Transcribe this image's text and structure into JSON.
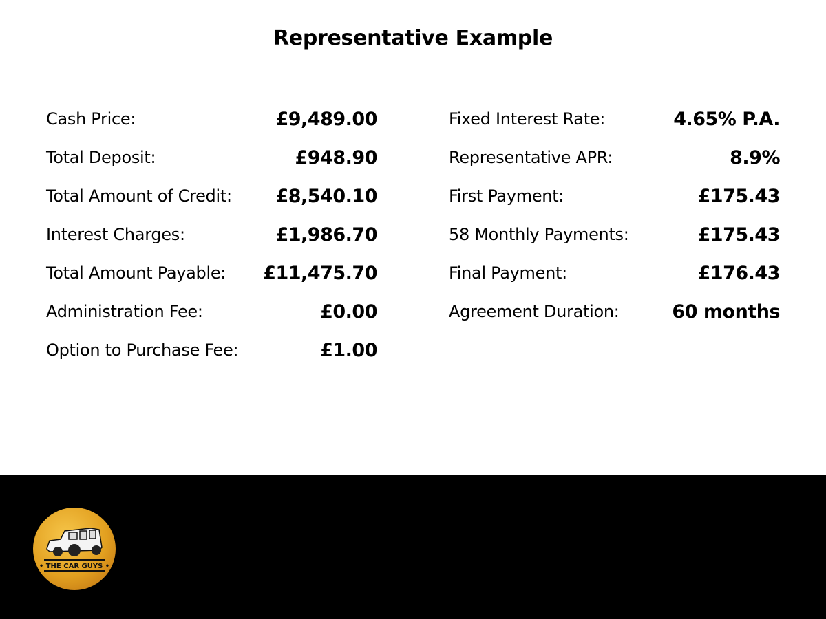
{
  "title": "Representative Example",
  "left": [
    {
      "label": "Cash Price:",
      "value": "£9,489.00"
    },
    {
      "label": "Total Deposit:",
      "value": "£948.90"
    },
    {
      "label": "Total Amount of Credit:",
      "value": "£8,540.10"
    },
    {
      "label": "Interest Charges:",
      "value": "£1,986.70"
    },
    {
      "label": "Total Amount Payable:",
      "value": "£11,475.70"
    },
    {
      "label": "Administration Fee:",
      "value": "£0.00"
    },
    {
      "label": "Option to Purchase Fee:",
      "value": "£1.00"
    }
  ],
  "right": [
    {
      "label": "Fixed Interest Rate:",
      "value": "4.65% P.A."
    },
    {
      "label": "Representative APR:",
      "value": "8.9%"
    },
    {
      "label": "First Payment:",
      "value": "£175.43"
    },
    {
      "label": "58 Monthly Payments:",
      "value": "£175.43"
    },
    {
      "label": "Final Payment:",
      "value": "£176.43"
    },
    {
      "label": "Agreement Duration:",
      "value": "60 months"
    }
  ],
  "footer": {
    "logo_text": "THE CAR GUYS",
    "logo_color": "#e2a020"
  }
}
